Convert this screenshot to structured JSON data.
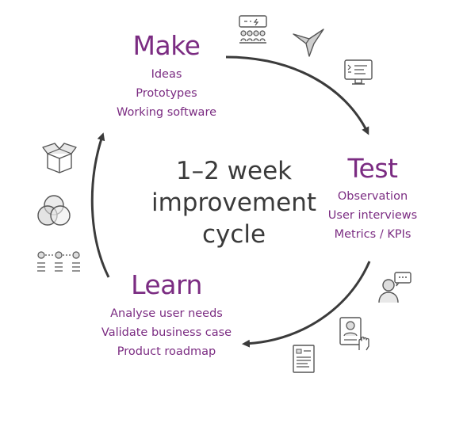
{
  "diagram": {
    "center": {
      "lines": [
        "1–2 week",
        "improvement",
        "cycle"
      ]
    },
    "phases": [
      {
        "id": "make",
        "title": "Make",
        "items": [
          "Ideas",
          "Prototypes",
          "Working software"
        ]
      },
      {
        "id": "test",
        "title": "Test",
        "items": [
          "Observation",
          "User interviews",
          "Metrics / KPIs"
        ]
      },
      {
        "id": "learn",
        "title": "Learn",
        "items": [
          "Analyse user needs",
          "Validate business case",
          "Product roadmap"
        ]
      }
    ],
    "colors": {
      "accent": "#7b2c82",
      "arrow": "#3b3b3b",
      "text": "#3a3a3a",
      "icon_stroke": "#555555"
    },
    "icons": [
      "workshop-icon",
      "paper-plane-bird-icon",
      "monitor-checklist-icon",
      "person-speech-bubble-icon",
      "profile-card-touch-icon",
      "document-list-icon",
      "open-box-icon",
      "venn-diagram-icon",
      "process-flow-icon"
    ]
  }
}
